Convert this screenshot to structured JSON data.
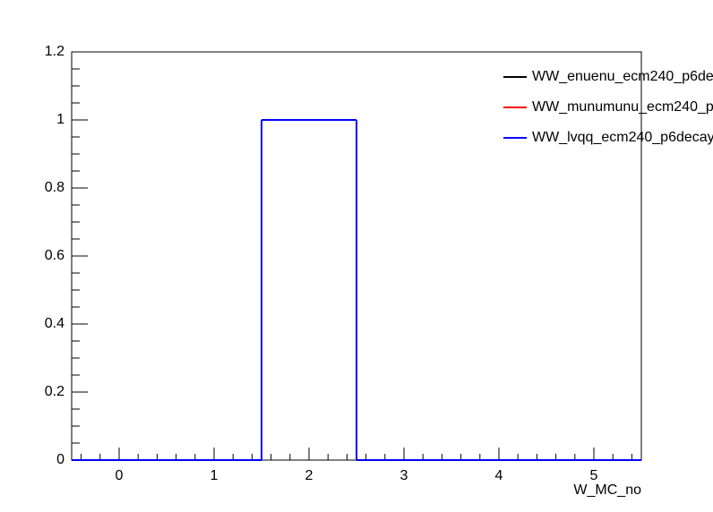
{
  "chart_data": {
    "type": "histogram",
    "x_label": "W_MC_no",
    "bins": [
      -0.5,
      0.5,
      1.5,
      2.5,
      3.5,
      4.5,
      5.5
    ],
    "series": [
      {
        "name": "WW_enuenu_ecm240_p6de",
        "color": "#000000",
        "values": [
          0,
          0,
          1,
          0,
          0,
          0
        ]
      },
      {
        "name": "WW_munumunu_ecm240_p",
        "color": "#ff0000",
        "values": [
          0,
          0,
          1,
          0,
          0,
          0
        ]
      },
      {
        "name": "WW_lvqq_ecm240_p6decay",
        "color": "#0000ff",
        "values": [
          0,
          0,
          1,
          0,
          0,
          0
        ]
      }
    ],
    "xlim": [
      -0.5,
      5.5
    ],
    "xticks": [
      0,
      1,
      2,
      3,
      4,
      5
    ],
    "ylim": [
      0,
      1.2
    ],
    "yticks": [
      0,
      0.2,
      0.4,
      0.6,
      0.8,
      1,
      1.2
    ],
    "legend": "top-right"
  }
}
